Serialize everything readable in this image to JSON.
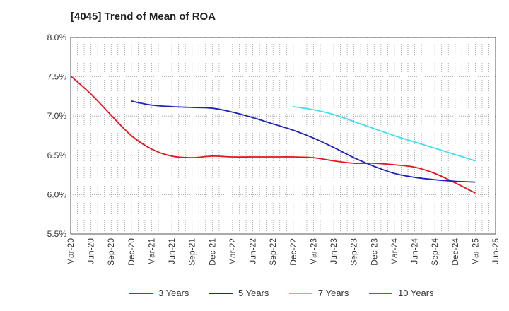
{
  "title": "[4045]  Trend of Mean of ROA",
  "chart_data": {
    "type": "line",
    "title": "[4045]  Trend of Mean of ROA",
    "xlabel": "",
    "ylabel": "",
    "ylim": [
      5.5,
      8.0
    ],
    "y_ticks": [
      "5.5%",
      "6.0%",
      "6.5%",
      "7.0%",
      "7.5%",
      "8.0%"
    ],
    "x_ticks": [
      "Mar-20",
      "Jun-20",
      "Sep-20",
      "Dec-20",
      "Mar-21",
      "Jun-21",
      "Sep-21",
      "Dec-21",
      "Mar-22",
      "Jun-22",
      "Sep-22",
      "Dec-22",
      "Mar-23",
      "Jun-23",
      "Sep-23",
      "Dec-23",
      "Mar-24",
      "Jun-24",
      "Sep-24",
      "Dec-24",
      "Mar-25",
      "Jun-25"
    ],
    "grid": true,
    "legend_position": "bottom",
    "series": [
      {
        "name": "3 Years",
        "color": "#e8141c",
        "x": [
          "Mar-20",
          "Jun-20",
          "Sep-20",
          "Dec-20",
          "Mar-21",
          "Jun-21",
          "Sep-21",
          "Dec-21",
          "Mar-22",
          "Jun-22",
          "Sep-22",
          "Dec-22",
          "Mar-23",
          "Jun-23",
          "Sep-23",
          "Dec-23",
          "Mar-24",
          "Jun-24",
          "Sep-24",
          "Dec-24",
          "Mar-25"
        ],
        "values": [
          7.51,
          7.28,
          7.01,
          6.75,
          6.58,
          6.49,
          6.47,
          6.49,
          6.48,
          6.48,
          6.48,
          6.48,
          6.47,
          6.43,
          6.4,
          6.4,
          6.38,
          6.35,
          6.27,
          6.15,
          6.02
        ]
      },
      {
        "name": "5 Years",
        "color": "#1c23b8",
        "x": [
          "Dec-20",
          "Mar-21",
          "Jun-21",
          "Sep-21",
          "Dec-21",
          "Mar-22",
          "Jun-22",
          "Sep-22",
          "Dec-22",
          "Mar-23",
          "Jun-23",
          "Sep-23",
          "Dec-23",
          "Mar-24",
          "Jun-24",
          "Sep-24",
          "Dec-24",
          "Mar-25"
        ],
        "values": [
          7.19,
          7.14,
          7.12,
          7.11,
          7.1,
          7.05,
          6.98,
          6.9,
          6.82,
          6.72,
          6.6,
          6.47,
          6.36,
          6.27,
          6.22,
          6.19,
          6.17,
          6.16
        ]
      },
      {
        "name": "7 Years",
        "color": "#3ee0ec",
        "x": [
          "Dec-22",
          "Mar-23",
          "Jun-23",
          "Sep-23",
          "Dec-23",
          "Mar-24",
          "Jun-24",
          "Sep-24",
          "Dec-24",
          "Mar-25"
        ],
        "values": [
          7.12,
          7.08,
          7.02,
          6.93,
          6.84,
          6.75,
          6.67,
          6.59,
          6.51,
          6.43
        ]
      },
      {
        "name": "10 Years",
        "color": "#2a8a2a",
        "x": [],
        "values": []
      }
    ]
  }
}
